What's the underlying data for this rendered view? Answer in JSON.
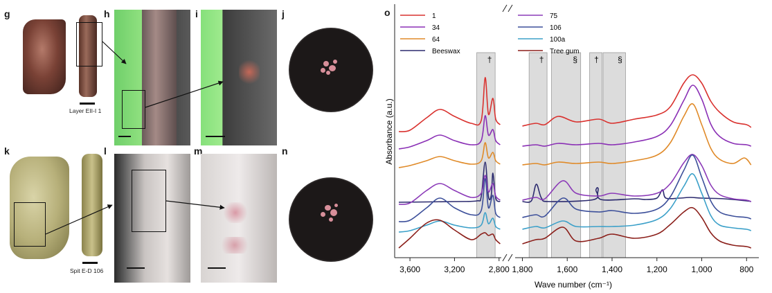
{
  "panels": {
    "g": "g",
    "h": "h",
    "i": "i",
    "j": "j",
    "k": "k",
    "l": "l",
    "m": "m",
    "n": "n",
    "o": "o"
  },
  "captions": {
    "g_layer": "Layer EII-I 1",
    "k_spit": "Spit E-D 106"
  },
  "colors": {
    "s1": "#d9312e",
    "s34": "#8a2fb5",
    "s64": "#e08a28",
    "beeswax": "#2b2a6e",
    "s75": "#8b3ab8",
    "s106": "#3c4f9a",
    "s100a": "#3ba0c9",
    "treegum": "#8b1f1a",
    "band": "#dcdcdc"
  },
  "chart_data": {
    "type": "line",
    "ylabel": "Absorbance (a.u.)",
    "xlabel": "Wave number (cm⁻¹)",
    "x_axis": "reversed, broken between 2,800 and 1,800",
    "xticks_left": [
      "3,600",
      "3,200",
      "2,800"
    ],
    "xticks_right": [
      "1,800",
      "1,600",
      "1,400",
      "1,200",
      "1,000",
      "800"
    ],
    "legend": [
      {
        "name": "1",
        "color": "#d9312e"
      },
      {
        "name": "75",
        "color": "#8b3ab8"
      },
      {
        "name": "34",
        "color": "#8a2fb5"
      },
      {
        "name": "106",
        "color": "#3c4f9a"
      },
      {
        "name": "64",
        "color": "#e08a28"
      },
      {
        "name": "100a",
        "color": "#3ba0c9"
      },
      {
        "name": "Beeswax",
        "color": "#2b2a6e"
      },
      {
        "name": "Tree gum",
        "color": "#8b1f1a"
      }
    ],
    "bands": [
      {
        "from": 3000,
        "to": 2835,
        "symbol": "†"
      },
      {
        "from": 1770,
        "to": 1690,
        "symbol": "†"
      },
      {
        "from": 1670,
        "to": 1540,
        "symbol": "§"
      },
      {
        "from": 1500,
        "to": 1445,
        "symbol": "†"
      },
      {
        "from": 1440,
        "to": 1340,
        "symbol": "§"
      }
    ],
    "series": [
      {
        "name": "1",
        "color": "#d9312e",
        "offset": 150,
        "left": [
          [
            3700,
            0
          ],
          [
            3600,
            2
          ],
          [
            3450,
            20
          ],
          [
            3330,
            32
          ],
          [
            3200,
            22
          ],
          [
            3050,
            12
          ],
          [
            2960,
            16
          ],
          [
            2925,
            78
          ],
          [
            2895,
            25
          ],
          [
            2855,
            48
          ],
          [
            2830,
            18
          ],
          [
            2790,
            10
          ]
        ],
        "right": [
          [
            1800,
            8
          ],
          [
            1740,
            12
          ],
          [
            1700,
            10
          ],
          [
            1640,
            22
          ],
          [
            1560,
            14
          ],
          [
            1460,
            18
          ],
          [
            1400,
            12
          ],
          [
            1300,
            18
          ],
          [
            1200,
            24
          ],
          [
            1140,
            36
          ],
          [
            1080,
            70
          ],
          [
            1040,
            82
          ],
          [
            1000,
            70
          ],
          [
            960,
            44
          ],
          [
            920,
            28
          ],
          [
            860,
            14
          ],
          [
            800,
            10
          ],
          [
            780,
            6
          ]
        ]
      },
      {
        "name": "34",
        "color": "#8a2fb5",
        "offset": 125,
        "left": [
          [
            3700,
            0
          ],
          [
            3600,
            3
          ],
          [
            3450,
            12
          ],
          [
            3330,
            20
          ],
          [
            3200,
            12
          ],
          [
            3050,
            6
          ],
          [
            2960,
            12
          ],
          [
            2925,
            48
          ],
          [
            2895,
            20
          ],
          [
            2855,
            28
          ],
          [
            2830,
            12
          ],
          [
            2790,
            6
          ]
        ],
        "right": [
          [
            1800,
            4
          ],
          [
            1740,
            6
          ],
          [
            1700,
            4
          ],
          [
            1640,
            8
          ],
          [
            1560,
            6
          ],
          [
            1460,
            8
          ],
          [
            1400,
            6
          ],
          [
            1300,
            10
          ],
          [
            1200,
            18
          ],
          [
            1140,
            34
          ],
          [
            1080,
            70
          ],
          [
            1040,
            92
          ],
          [
            1000,
            72
          ],
          [
            960,
            36
          ],
          [
            920,
            18
          ],
          [
            860,
            8
          ],
          [
            800,
            6
          ],
          [
            780,
            4
          ]
        ]
      },
      {
        "name": "64",
        "color": "#e08a28",
        "offset": 98,
        "left": [
          [
            3700,
            0
          ],
          [
            3600,
            3
          ],
          [
            3450,
            10
          ],
          [
            3330,
            16
          ],
          [
            3200,
            10
          ],
          [
            3050,
            5
          ],
          [
            2960,
            10
          ],
          [
            2925,
            36
          ],
          [
            2895,
            14
          ],
          [
            2855,
            22
          ],
          [
            2830,
            10
          ],
          [
            2790,
            5
          ]
        ],
        "right": [
          [
            1800,
            4
          ],
          [
            1740,
            6
          ],
          [
            1700,
            4
          ],
          [
            1640,
            8
          ],
          [
            1560,
            6
          ],
          [
            1460,
            8
          ],
          [
            1400,
            6
          ],
          [
            1300,
            10
          ],
          [
            1200,
            18
          ],
          [
            1140,
            36
          ],
          [
            1080,
            74
          ],
          [
            1040,
            92
          ],
          [
            1000,
            62
          ],
          [
            960,
            28
          ],
          [
            920,
            12
          ],
          [
            860,
            6
          ],
          [
            810,
            14
          ],
          [
            780,
            4
          ]
        ]
      },
      {
        "name": "Beeswax",
        "color": "#2b2a6e",
        "offset": 48,
        "left": [
          [
            3700,
            0
          ],
          [
            3200,
            1
          ],
          [
            3000,
            2
          ],
          [
            2960,
            8
          ],
          [
            2925,
            58
          ],
          [
            2895,
            8
          ],
          [
            2870,
            10
          ],
          [
            2855,
            42
          ],
          [
            2830,
            6
          ],
          [
            2790,
            1
          ]
        ],
        "right": [
          [
            1800,
            1
          ],
          [
            1760,
            2
          ],
          [
            1738,
            26
          ],
          [
            1715,
            6
          ],
          [
            1680,
            1
          ],
          [
            1480,
            4
          ],
          [
            1472,
            18
          ],
          [
            1462,
            20
          ],
          [
            1450,
            4
          ],
          [
            1300,
            5
          ],
          [
            1250,
            4
          ],
          [
            1200,
            6
          ],
          [
            1175,
            18
          ],
          [
            1160,
            6
          ],
          [
            1100,
            6
          ],
          [
            1050,
            7
          ],
          [
            1000,
            6
          ],
          [
            900,
            5
          ],
          [
            800,
            2
          ],
          [
            780,
            1
          ]
        ]
      },
      {
        "name": "75",
        "color": "#8b3ab8",
        "offset": 45,
        "left": [
          [
            3700,
            0
          ],
          [
            3600,
            2
          ],
          [
            3450,
            20
          ],
          [
            3330,
            30
          ],
          [
            3200,
            20
          ],
          [
            3050,
            10
          ],
          [
            2960,
            16
          ],
          [
            2925,
            42
          ],
          [
            2895,
            18
          ],
          [
            2855,
            30
          ],
          [
            2830,
            12
          ],
          [
            2790,
            6
          ]
        ],
        "right": [
          [
            1800,
            6
          ],
          [
            1740,
            10
          ],
          [
            1700,
            8
          ],
          [
            1620,
            34
          ],
          [
            1560,
            16
          ],
          [
            1460,
            12
          ],
          [
            1400,
            16
          ],
          [
            1300,
            12
          ],
          [
            1200,
            16
          ],
          [
            1140,
            30
          ],
          [
            1080,
            60
          ],
          [
            1040,
            72
          ],
          [
            1000,
            56
          ],
          [
            960,
            28
          ],
          [
            920,
            14
          ],
          [
            860,
            8
          ],
          [
            800,
            6
          ],
          [
            780,
            4
          ]
        ]
      },
      {
        "name": "106",
        "color": "#3c4f9a",
        "offset": 20,
        "left": [
          [
            3700,
            0
          ],
          [
            3600,
            2
          ],
          [
            3450,
            20
          ],
          [
            3330,
            34
          ],
          [
            3200,
            20
          ],
          [
            3050,
            10
          ],
          [
            2960,
            16
          ],
          [
            2925,
            62
          ],
          [
            2895,
            20
          ],
          [
            2855,
            38
          ],
          [
            2830,
            12
          ],
          [
            2790,
            6
          ]
        ],
        "right": [
          [
            1800,
            6
          ],
          [
            1740,
            10
          ],
          [
            1700,
            8
          ],
          [
            1620,
            34
          ],
          [
            1560,
            18
          ],
          [
            1460,
            14
          ],
          [
            1400,
            16
          ],
          [
            1300,
            12
          ],
          [
            1200,
            18
          ],
          [
            1140,
            36
          ],
          [
            1080,
            74
          ],
          [
            1040,
            96
          ],
          [
            1000,
            64
          ],
          [
            960,
            30
          ],
          [
            920,
            14
          ],
          [
            860,
            8
          ],
          [
            800,
            6
          ],
          [
            780,
            4
          ]
        ]
      },
      {
        "name": "100a",
        "color": "#3ba0c9",
        "offset": 5,
        "left": [
          [
            3700,
            0
          ],
          [
            3600,
            2
          ],
          [
            3450,
            10
          ],
          [
            3330,
            16
          ],
          [
            3200,
            10
          ],
          [
            3050,
            6
          ],
          [
            2960,
            10
          ],
          [
            2925,
            28
          ],
          [
            2895,
            12
          ],
          [
            2855,
            20
          ],
          [
            2830,
            8
          ],
          [
            2790,
            4
          ]
        ],
        "right": [
          [
            1800,
            4
          ],
          [
            1740,
            8
          ],
          [
            1700,
            6
          ],
          [
            1620,
            16
          ],
          [
            1560,
            8
          ],
          [
            1460,
            8
          ],
          [
            1400,
            8
          ],
          [
            1300,
            10
          ],
          [
            1200,
            18
          ],
          [
            1140,
            34
          ],
          [
            1080,
            66
          ],
          [
            1040,
            84
          ],
          [
            1000,
            56
          ],
          [
            960,
            24
          ],
          [
            920,
            10
          ],
          [
            860,
            6
          ],
          [
            800,
            4
          ],
          [
            780,
            2
          ]
        ]
      },
      {
        "name": "Tree gum",
        "color": "#8b1f1a",
        "offset": -18,
        "left": [
          [
            3700,
            0
          ],
          [
            3600,
            14
          ],
          [
            3450,
            36
          ],
          [
            3330,
            40
          ],
          [
            3200,
            26
          ],
          [
            3050,
            12
          ],
          [
            2960,
            20
          ],
          [
            2925,
            22
          ],
          [
            2895,
            18
          ],
          [
            2855,
            20
          ],
          [
            2830,
            12
          ],
          [
            2790,
            6
          ]
        ],
        "right": [
          [
            1800,
            6
          ],
          [
            1740,
            12
          ],
          [
            1700,
            14
          ],
          [
            1620,
            30
          ],
          [
            1560,
            10
          ],
          [
            1460,
            14
          ],
          [
            1400,
            20
          ],
          [
            1300,
            14
          ],
          [
            1200,
            20
          ],
          [
            1140,
            34
          ],
          [
            1080,
            52
          ],
          [
            1040,
            58
          ],
          [
            1000,
            44
          ],
          [
            960,
            22
          ],
          [
            920,
            10
          ],
          [
            860,
            4
          ],
          [
            800,
            2
          ],
          [
            780,
            0
          ]
        ]
      }
    ]
  }
}
